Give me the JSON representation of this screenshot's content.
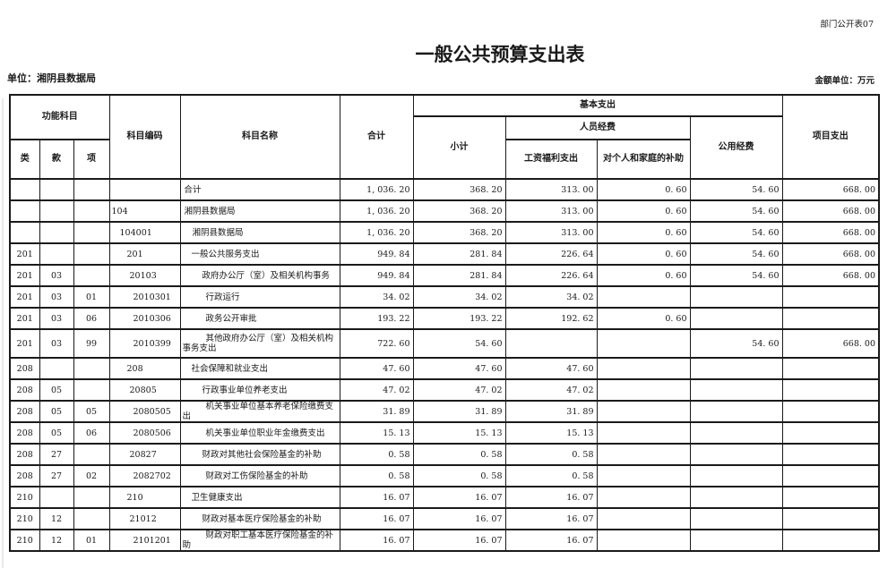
{
  "page": {
    "doc_label": "部门公开表07",
    "title": "一般公共预算支出表",
    "unit_label": "单位：湘阴县数据局",
    "amount_unit_label": "金额单位：万元"
  },
  "table": {
    "headers": {
      "func_subject": "功能科目",
      "cls": "类",
      "sec": "款",
      "item": "项",
      "subject_code": "科目编码",
      "subject_name": "科目名称",
      "total": "合计",
      "basic_expense": "基本支出",
      "subtotal": "小计",
      "personnel": "人员经费",
      "salary_welfare": "工资福利支出",
      "individual_family": "对个人和家庭的补助",
      "public_funds": "公用经费",
      "project_expense": "项目支出"
    },
    "rows": [
      {
        "cls": "",
        "sec": "",
        "item": "",
        "code": "",
        "name": "合计",
        "level": 0,
        "total": "1, 036. 20",
        "subtotal": "368. 20",
        "salary": "313. 00",
        "family": "0. 60",
        "public": "54. 60",
        "project": "668. 00",
        "tall": false
      },
      {
        "cls": "",
        "sec": "",
        "item": "",
        "code": "104",
        "name": "湘阴县数据局",
        "level": 1,
        "total": "1, 036. 20",
        "subtotal": "368. 20",
        "salary": "313. 00",
        "family": "0. 60",
        "public": "54. 60",
        "project": "668. 00",
        "tall": false
      },
      {
        "cls": "",
        "sec": "",
        "item": "",
        "code": "104001",
        "name": "湘阴县数据局",
        "level": 2,
        "total": "1, 036. 20",
        "subtotal": "368. 20",
        "salary": "313. 00",
        "family": "0. 60",
        "public": "54. 60",
        "project": "668. 00",
        "tall": false
      },
      {
        "cls": "201",
        "sec": "",
        "item": "",
        "code": "201",
        "name": "一般公共服务支出",
        "level": 3,
        "total": "949. 84",
        "subtotal": "281. 84",
        "salary": "226. 64",
        "family": "0. 60",
        "public": "54. 60",
        "project": "668. 00",
        "tall": false
      },
      {
        "cls": "201",
        "sec": "03",
        "item": "",
        "code": "20103",
        "name": "政府办公厅（室）及相关机构事务",
        "level": 4,
        "total": "949. 84",
        "subtotal": "281. 84",
        "salary": "226. 64",
        "family": "0. 60",
        "public": "54. 60",
        "project": "668. 00",
        "tall": false
      },
      {
        "cls": "201",
        "sec": "03",
        "item": "01",
        "code": "2010301",
        "name": "行政运行",
        "level": 5,
        "total": "34. 02",
        "subtotal": "34. 02",
        "salary": "34. 02",
        "family": "",
        "public": "",
        "project": "",
        "tall": false
      },
      {
        "cls": "201",
        "sec": "03",
        "item": "06",
        "code": "2010306",
        "name": "政务公开审批",
        "level": 5,
        "total": "193. 22",
        "subtotal": "193. 22",
        "salary": "192. 62",
        "family": "0. 60",
        "public": "",
        "project": "",
        "tall": false
      },
      {
        "cls": "201",
        "sec": "03",
        "item": "99",
        "code": "2010399",
        "name": "其他政府办公厅（室）及相关机构事务支出",
        "level": 5,
        "total": "722. 60",
        "subtotal": "54. 60",
        "salary": "",
        "family": "",
        "public": "54. 60",
        "project": "668. 00",
        "tall": true
      },
      {
        "cls": "208",
        "sec": "",
        "item": "",
        "code": "208",
        "name": "社会保障和就业支出",
        "level": 3,
        "total": "47. 60",
        "subtotal": "47. 60",
        "salary": "47. 60",
        "family": "",
        "public": "",
        "project": "",
        "tall": false
      },
      {
        "cls": "208",
        "sec": "05",
        "item": "",
        "code": "20805",
        "name": "行政事业单位养老支出",
        "level": 4,
        "total": "47. 02",
        "subtotal": "47. 02",
        "salary": "47. 02",
        "family": "",
        "public": "",
        "project": "",
        "tall": false
      },
      {
        "cls": "208",
        "sec": "05",
        "item": "05",
        "code": "2080505",
        "name": "机关事业单位基本养老保险缴费支出",
        "level": 5,
        "total": "31. 89",
        "subtotal": "31. 89",
        "salary": "31. 89",
        "family": "",
        "public": "",
        "project": "",
        "tall": false
      },
      {
        "cls": "208",
        "sec": "05",
        "item": "06",
        "code": "2080506",
        "name": "机关事业单位职业年金缴费支出",
        "level": 5,
        "total": "15. 13",
        "subtotal": "15. 13",
        "salary": "15. 13",
        "family": "",
        "public": "",
        "project": "",
        "tall": false
      },
      {
        "cls": "208",
        "sec": "27",
        "item": "",
        "code": "20827",
        "name": "财政对其他社会保险基金的补助",
        "level": 4,
        "total": "0. 58",
        "subtotal": "0. 58",
        "salary": "0. 58",
        "family": "",
        "public": "",
        "project": "",
        "tall": false
      },
      {
        "cls": "208",
        "sec": "27",
        "item": "02",
        "code": "2082702",
        "name": "财政对工伤保险基金的补助",
        "level": 5,
        "total": "0. 58",
        "subtotal": "0. 58",
        "salary": "0. 58",
        "family": "",
        "public": "",
        "project": "",
        "tall": false
      },
      {
        "cls": "210",
        "sec": "",
        "item": "",
        "code": "210",
        "name": "卫生健康支出",
        "level": 3,
        "total": "16. 07",
        "subtotal": "16. 07",
        "salary": "16. 07",
        "family": "",
        "public": "",
        "project": "",
        "tall": false
      },
      {
        "cls": "210",
        "sec": "12",
        "item": "",
        "code": "21012",
        "name": "财政对基本医疗保险基金的补助",
        "level": 4,
        "total": "16. 07",
        "subtotal": "16. 07",
        "salary": "16. 07",
        "family": "",
        "public": "",
        "project": "",
        "tall": false
      },
      {
        "cls": "210",
        "sec": "12",
        "item": "01",
        "code": "2101201",
        "name": "财政对职工基本医疗保险基金的补助",
        "level": 5,
        "total": "16. 07",
        "subtotal": "16. 07",
        "salary": "16. 07",
        "family": "",
        "public": "",
        "project": "",
        "tall": false
      }
    ]
  }
}
